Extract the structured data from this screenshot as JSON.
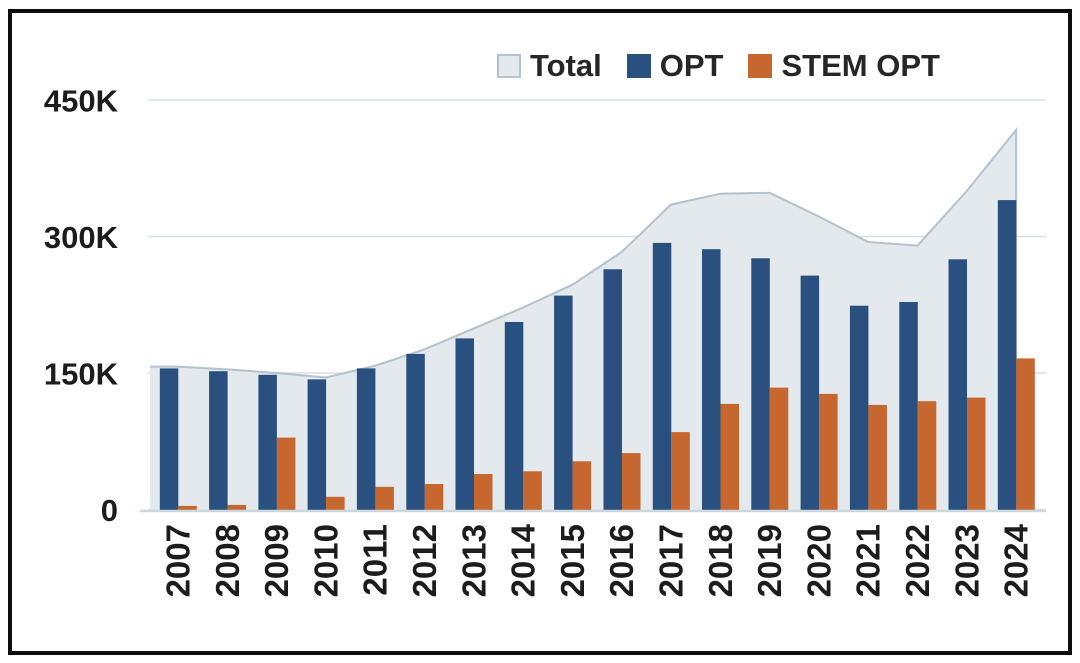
{
  "chart_data": {
    "type": "combo (area + grouped bars)",
    "categories": [
      "2007",
      "2008",
      "2009",
      "2010",
      "2011",
      "2012",
      "2013",
      "2014",
      "2015",
      "2016",
      "2017",
      "2018",
      "2019",
      "2020",
      "2021",
      "2022",
      "2023",
      "2024"
    ],
    "units": "thousands (K)",
    "series": [
      {
        "name": "Total",
        "type": "area",
        "color": "#e4e9ee",
        "border_color": "#b3c2cc",
        "values": [
          157,
          154,
          150,
          145,
          158,
          176,
          199,
          222,
          247,
          283,
          335,
          347,
          348,
          322,
          294,
          290,
          350,
          417
        ]
      },
      {
        "name": "OPT",
        "type": "bar",
        "color": "#29507e",
        "values": [
          155,
          152,
          148,
          143,
          155,
          171,
          188,
          206,
          235,
          264,
          293,
          286,
          276,
          257,
          224,
          228,
          275,
          340
        ]
      },
      {
        "name": "STEM OPT",
        "type": "bar",
        "color": "#c5672f",
        "values": [
          4,
          5,
          79,
          14,
          25,
          28,
          39,
          42,
          53,
          62,
          85,
          116,
          134,
          127,
          115,
          119,
          123,
          166
        ]
      }
    ],
    "y_axis": {
      "max": 450,
      "ticks": [
        {
          "label": "0",
          "value": 0
        },
        {
          "label": "150K",
          "value": 150
        },
        {
          "label": "300K",
          "value": 300
        },
        {
          "label": "450K",
          "value": 450
        }
      ]
    },
    "x_axis": {
      "label_rotation_deg": -90
    },
    "legend_position": "top-right",
    "gridlines": "horizontal",
    "grid_color": "#d7dfe6",
    "axis_line_color": "#ccd6dd",
    "frame_color": "#0e0e0e"
  }
}
